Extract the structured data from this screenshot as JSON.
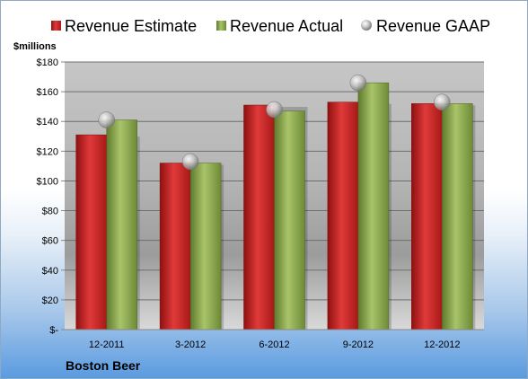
{
  "chart_data": {
    "type": "bar",
    "unit_label": "$millions",
    "company": "Boston Beer",
    "categories": [
      "12-2011",
      "3-2012",
      "6-2012",
      "9-2012",
      "12-2012"
    ],
    "series": [
      {
        "name": "Revenue Estimate",
        "kind": "bar",
        "values": [
          131,
          112,
          151,
          153,
          152
        ]
      },
      {
        "name": "Revenue Actual",
        "kind": "bar",
        "values": [
          141,
          112,
          147,
          166,
          152
        ]
      },
      {
        "name": "Revenue GAAP",
        "kind": "marker",
        "values": [
          141,
          113,
          148,
          166,
          153
        ]
      }
    ],
    "ylim": [
      0,
      180
    ],
    "yticks": [
      0,
      20,
      40,
      60,
      80,
      100,
      120,
      140,
      160,
      180
    ],
    "ytick_labels": [
      "$-",
      "$20",
      "$40",
      "$60",
      "$80",
      "$100",
      "$120",
      "$140",
      "$160",
      "$180"
    ],
    "legend_position": "top",
    "grid": true,
    "colors": {
      "estimate": "#d42a2a",
      "actual": "#8caa4e",
      "gaap": "#b8b8b8"
    }
  }
}
